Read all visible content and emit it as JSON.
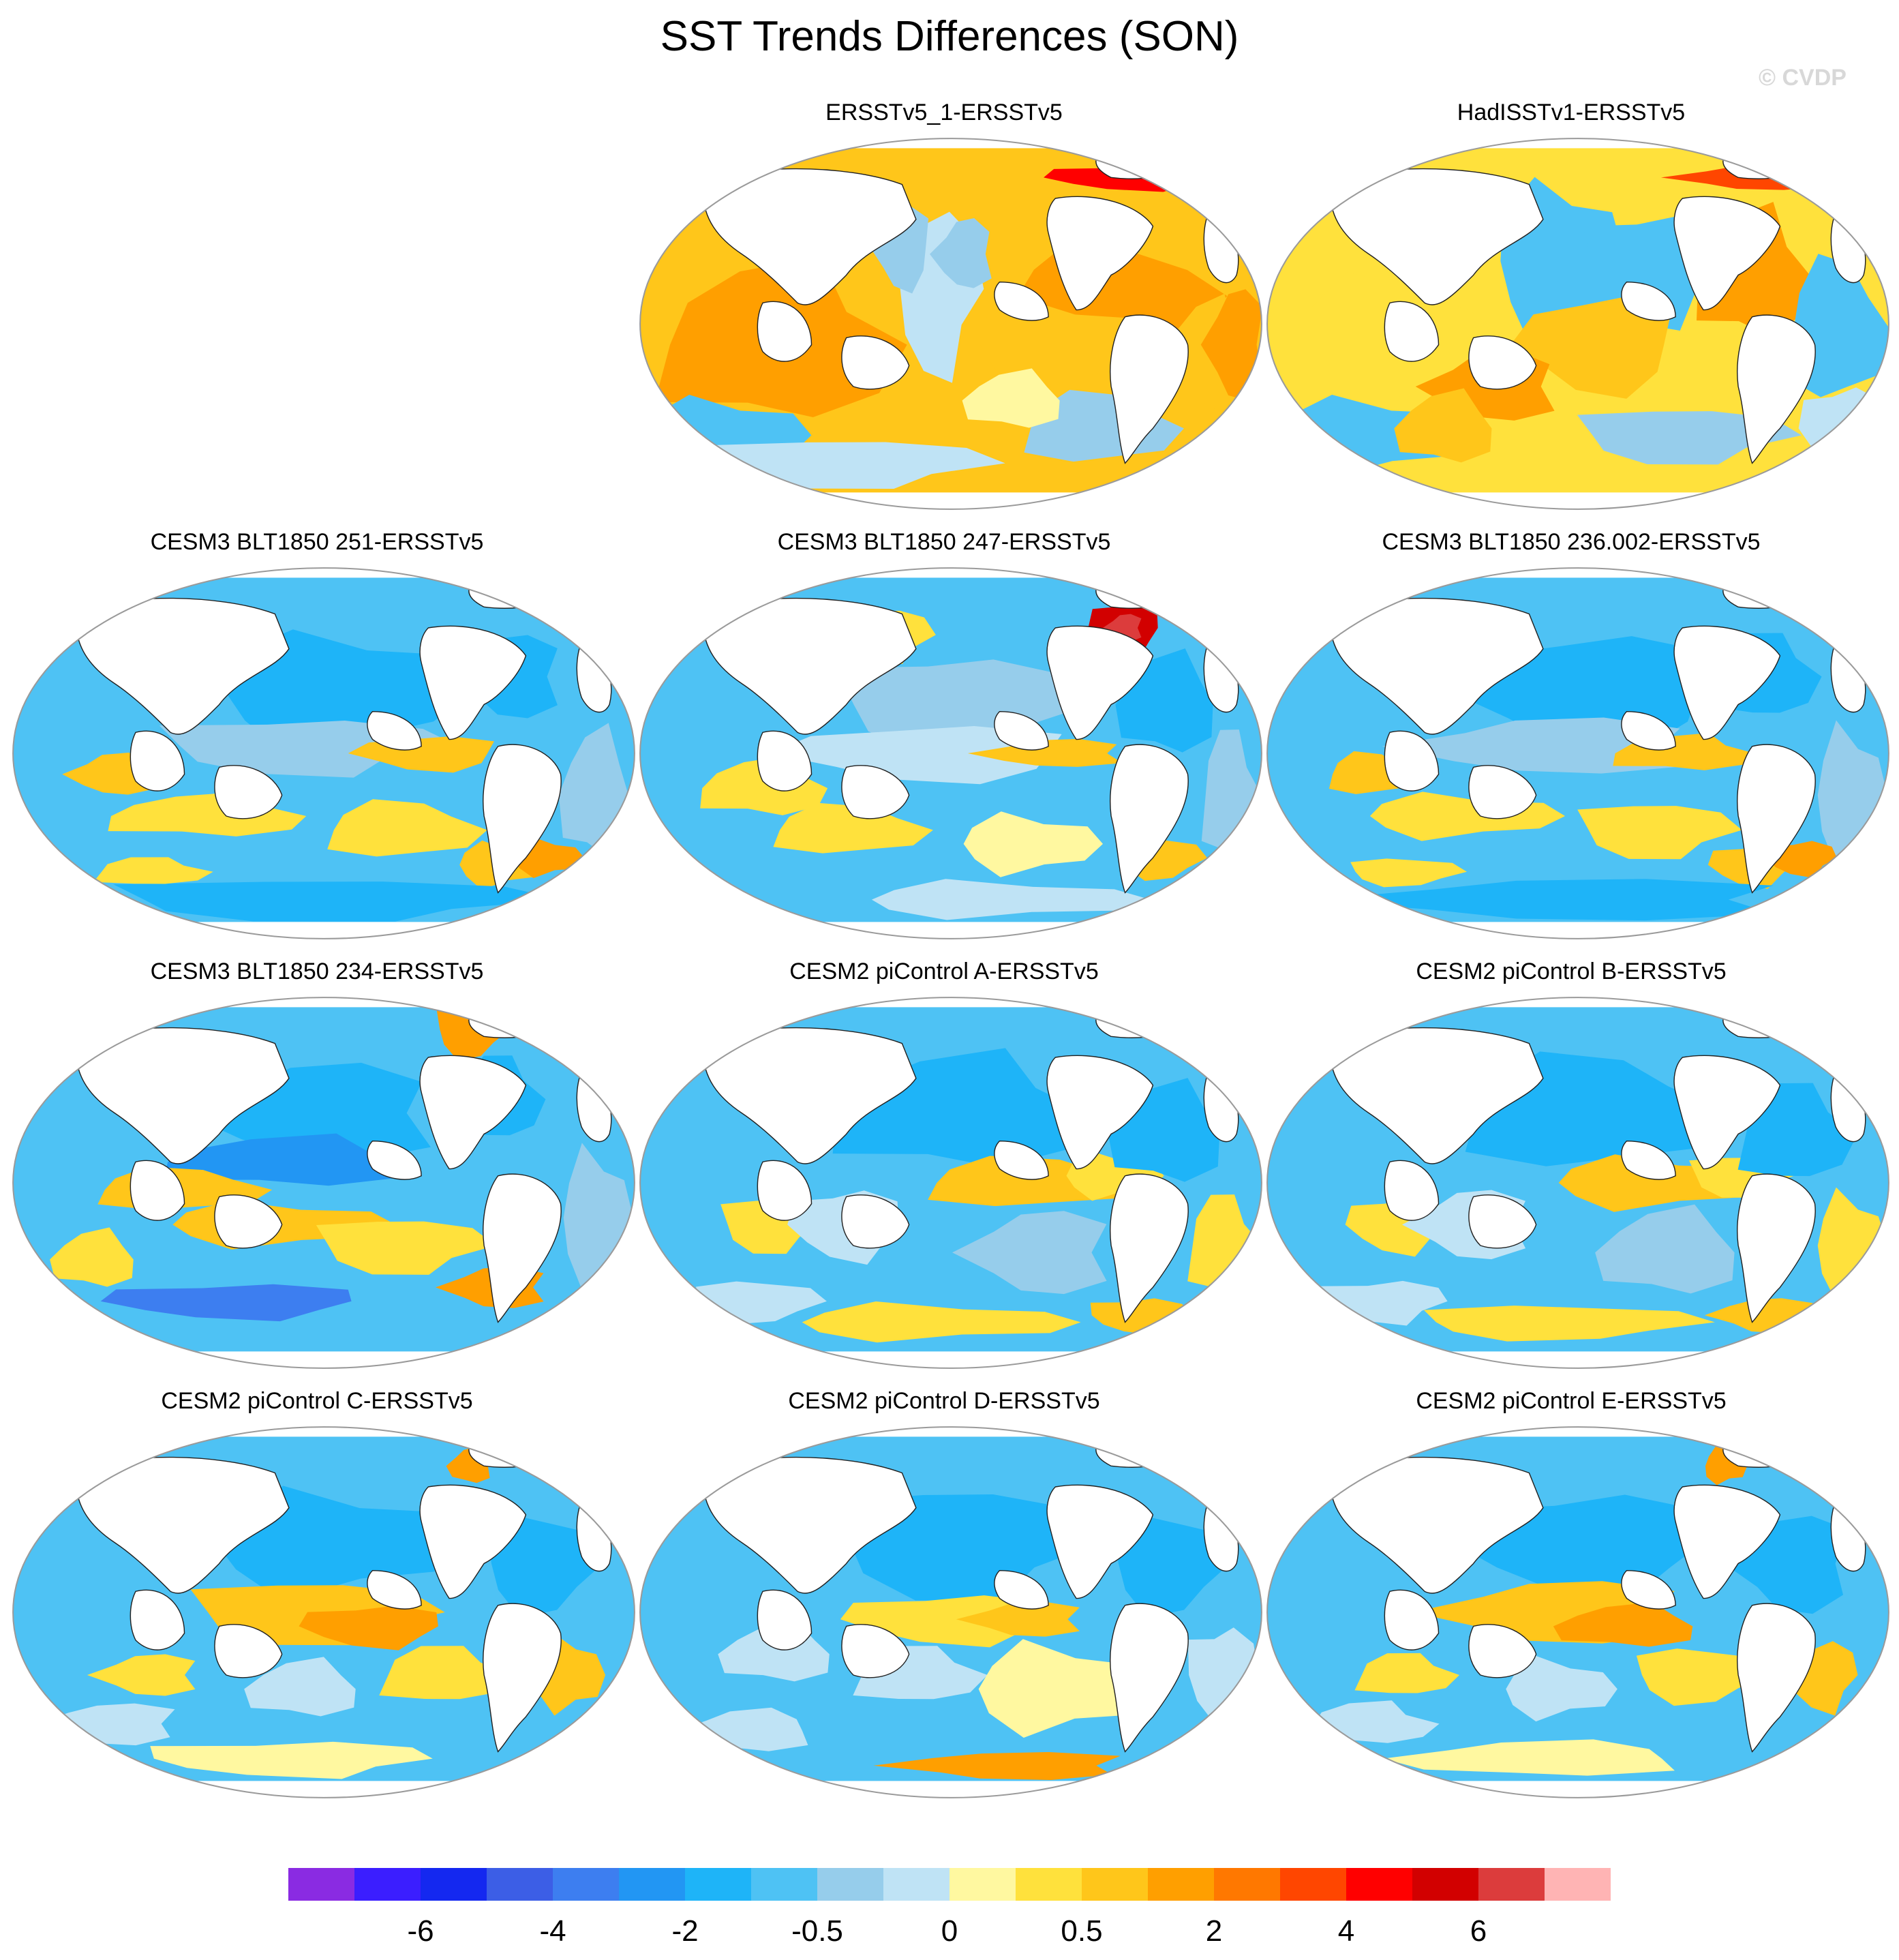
{
  "figure": {
    "title": "SST Trends Differences (SON)",
    "watermark": "© CVDP"
  },
  "panels": [
    {
      "title": "ERSSTv5_1-ERSSTv5",
      "pattern": "warm_broad"
    },
    {
      "title": "HadISSTv1-ERSSTv5",
      "pattern": "warm_mixed"
    },
    {
      "title": "CESM3 BLT1850 251-ERSSTv5",
      "pattern": "cool_warm_bands"
    },
    {
      "title": "CESM3 BLT1850 247-ERSSTv5",
      "pattern": "cool_labrador_hot"
    },
    {
      "title": "CESM3 BLT1850 236.002-ERSSTv5",
      "pattern": "cool_warm_bands"
    },
    {
      "title": "CESM3 BLT1850 234-ERSSTv5",
      "pattern": "cool_warm_bands_strong"
    },
    {
      "title": "CESM2 piControl A-ERSSTv5",
      "pattern": "cool_tropics_warm"
    },
    {
      "title": "CESM2 piControl B-ERSSTv5",
      "pattern": "cool_tropics_warm"
    },
    {
      "title": "CESM2 piControl C-ERSSTv5",
      "pattern": "cool_tropics_warm_strong"
    },
    {
      "title": "CESM2 piControl D-ERSSTv5",
      "pattern": "cool_tropics_weak"
    },
    {
      "title": "CESM2 piControl E-ERSSTv5",
      "pattern": "cool_tropics_warm_strong"
    }
  ],
  "colorbar": {
    "colors": [
      "#8a2be2",
      "#3b1eff",
      "#1428f0",
      "#3c5ee6",
      "#3d7ef0",
      "#2296f3",
      "#1eb4f8",
      "#4ec2f4",
      "#96cdeb",
      "#bfe3f5",
      "#fff8a0",
      "#ffe13c",
      "#ffc61a",
      "#ff9f00",
      "#ff7800",
      "#ff4600",
      "#ff0000",
      "#d20000",
      "#dc3c3c",
      "#ffb4b4"
    ],
    "tick_labels": [
      "-6",
      "-4",
      "-2",
      "-0.5",
      "0",
      "0.5",
      "2",
      "4",
      "6"
    ]
  },
  "legend_palette": {
    "land": "#ffffff",
    "coast": "#222222",
    "frame": "#9a9a9a"
  }
}
